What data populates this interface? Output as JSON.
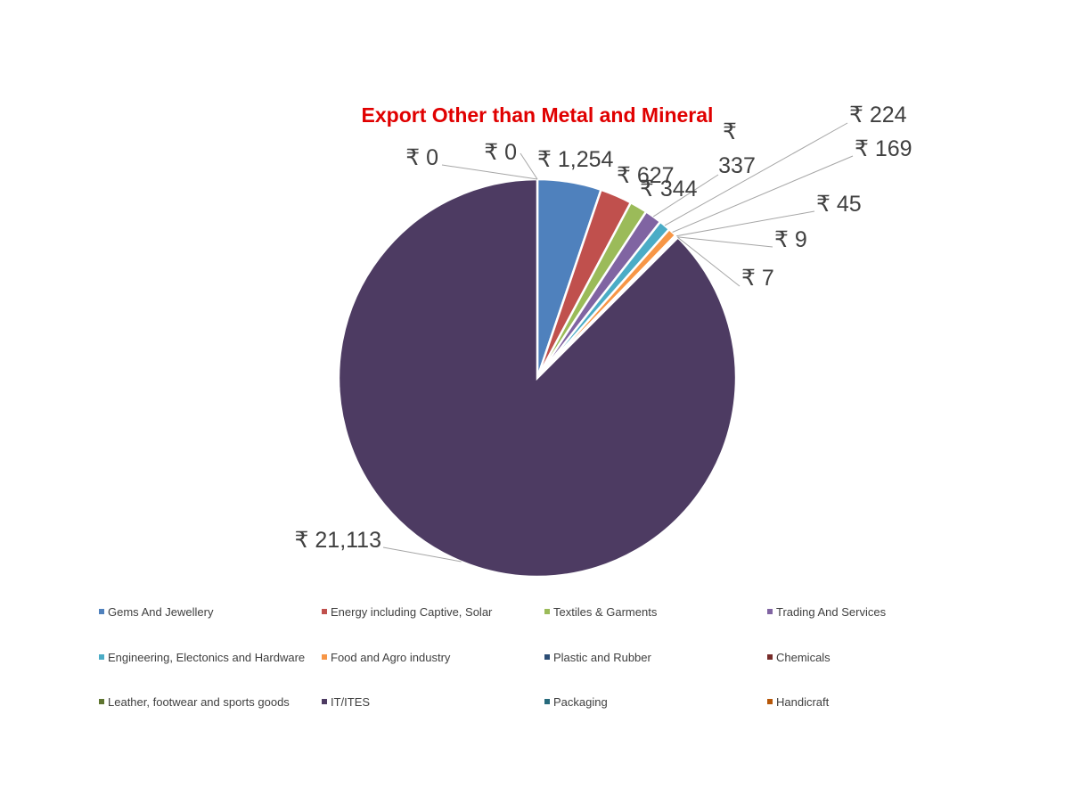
{
  "chart_data": {
    "type": "pie",
    "title": "Export Other than Metal and Mineral",
    "title_color": "#e00000",
    "currency_symbol": "₹",
    "legend_position": "bottom",
    "slices": [
      {
        "name": "Gems And Jewellery",
        "value": 1254,
        "label": "₹ 1,254",
        "color": "#4f81bd"
      },
      {
        "name": "Energy including Captive, Solar",
        "value": 627,
        "label": "₹ 627",
        "color": "#c0504d"
      },
      {
        "name": "Textiles & Garments",
        "value": 344,
        "label": "₹ 344",
        "color": "#9bbb59"
      },
      {
        "name": "Trading And Services",
        "value": 337,
        "label": "₹ 337",
        "color": "#8064a2"
      },
      {
        "name": "Engineering, Electonics and Hardware",
        "value": 224,
        "label": "₹ 224",
        "color": "#4bacc6"
      },
      {
        "name": "Food and Agro industry",
        "value": 169,
        "label": "₹ 169",
        "color": "#f79646"
      },
      {
        "name": "Plastic and Rubber",
        "value": 45,
        "label": "₹ 45",
        "color": "#2c4d75"
      },
      {
        "name": "Chemicals",
        "value": 9,
        "label": "₹ 9",
        "color": "#772c2a"
      },
      {
        "name": "Leather, footwear and sports goods",
        "value": 7,
        "label": "₹ 7",
        "color": "#5f7530"
      },
      {
        "name": "IT/ITES",
        "value": 21113,
        "label": "₹ 21,113",
        "color": "#4d3b62"
      },
      {
        "name": "Packaging",
        "value": 0,
        "label": "₹ 0",
        "color": "#276a7c"
      },
      {
        "name": "Handicraft",
        "value": 0,
        "label": "₹ 0",
        "color": "#b65708"
      }
    ]
  }
}
